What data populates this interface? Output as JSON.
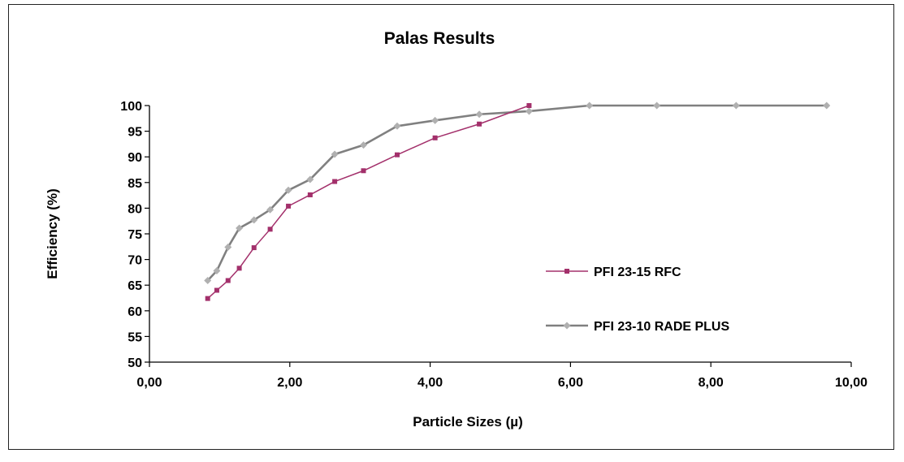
{
  "chart_data": {
    "type": "line",
    "title": "Palas Results",
    "xlabel": "Particle Sizes (µ)",
    "ylabel": "Efficiency (%)",
    "xlim": [
      0,
      10
    ],
    "ylim": [
      50,
      100
    ],
    "x_ticks": [
      "0,00",
      "2,00",
      "4,00",
      "6,00",
      "8,00",
      "10,00"
    ],
    "y_ticks": [
      "50",
      "55",
      "60",
      "65",
      "70",
      "75",
      "80",
      "85",
      "90",
      "95",
      "100"
    ],
    "grid": false,
    "legend_position": "right",
    "series": [
      {
        "name": "PFI 23-15 RFC",
        "color": "#a3306b",
        "marker": "square",
        "x": [
          0.83,
          0.96,
          1.12,
          1.28,
          1.49,
          1.72,
          1.98,
          2.29,
          2.64,
          3.05,
          3.53,
          4.07,
          4.7,
          5.41
        ],
        "y": [
          62.4,
          64.0,
          65.9,
          68.3,
          72.3,
          75.9,
          80.4,
          82.6,
          85.2,
          87.3,
          90.4,
          93.7,
          96.4,
          100
        ]
      },
      {
        "name": "PFI 23-10 RADE PLUS",
        "color": "#808080",
        "marker": "diamond",
        "x": [
          0.83,
          0.96,
          1.12,
          1.28,
          1.49,
          1.72,
          1.98,
          2.29,
          2.64,
          3.05,
          3.53,
          4.07,
          4.7,
          5.41,
          6.27,
          7.23,
          8.36,
          9.65
        ],
        "y": [
          65.9,
          67.8,
          72.4,
          76.1,
          77.7,
          79.7,
          83.5,
          85.6,
          90.5,
          92.3,
          96.0,
          97.1,
          98.3,
          98.9,
          100,
          100,
          100,
          100
        ]
      }
    ]
  }
}
